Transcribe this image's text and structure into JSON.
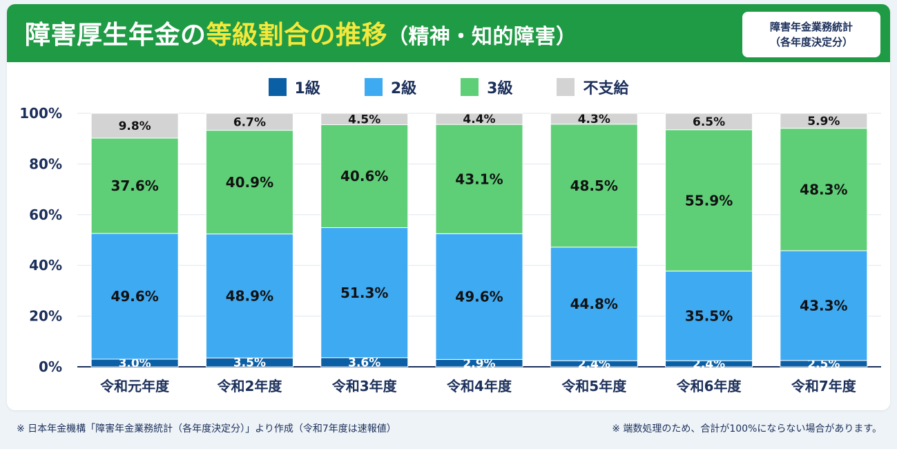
{
  "header": {
    "title_part1": "障害厚生年金の",
    "title_highlight": "等級割合の推移",
    "title_part2": "（精神・知的障害）",
    "source_line1": "障害年金業務統計",
    "source_line2": "（各年度決定分）"
  },
  "colors": {
    "header_bg": "#1f9a45",
    "highlight": "#f4e83c",
    "grade1": "#0b5fa5",
    "grade2": "#3eaaf2",
    "grade3": "#5ecf77",
    "unpaid": "#d3d3d3",
    "axis_text": "#1b2f5a"
  },
  "legend": [
    {
      "label": "1級",
      "color": "#0b5fa5"
    },
    {
      "label": "2級",
      "color": "#3eaaf2"
    },
    {
      "label": "3級",
      "color": "#5ecf77"
    },
    {
      "label": "不支給",
      "color": "#d3d3d3"
    }
  ],
  "chart_data": {
    "type": "bar",
    "stacked": true,
    "categories": [
      "令和元年度",
      "令和2年度",
      "令和3年度",
      "令和4年度",
      "令和5年度",
      "令和6年度",
      "令和7年度"
    ],
    "series": [
      {
        "name": "1級",
        "values": [
          3.0,
          3.5,
          3.6,
          2.9,
          2.4,
          2.4,
          2.5
        ],
        "labels": [
          "3.0%",
          "3.5%",
          "3.6%",
          "2.9%",
          "2.4%",
          "2.4%",
          "2.5%"
        ]
      },
      {
        "name": "2級",
        "values": [
          49.6,
          48.9,
          51.3,
          49.6,
          44.8,
          35.5,
          43.3
        ],
        "labels": [
          "49.6%",
          "48.9%",
          "51.3%",
          "49.6%",
          "44.8%",
          "35.5%",
          "43.3%"
        ]
      },
      {
        "name": "3級",
        "values": [
          37.6,
          40.9,
          40.6,
          43.1,
          48.5,
          55.9,
          48.3
        ],
        "labels": [
          "37.6%",
          "40.9%",
          "40.6%",
          "43.1%",
          "48.5%",
          "55.9%",
          "48.3%"
        ]
      },
      {
        "name": "不支給",
        "values": [
          9.8,
          6.7,
          4.5,
          4.4,
          4.3,
          6.5,
          5.9
        ],
        "labels": [
          "9.8%",
          "6.7%",
          "4.5%",
          "4.4%",
          "4.3%",
          "6.5%",
          "5.9%"
        ]
      }
    ],
    "y_ticks": [
      "0%",
      "20%",
      "40%",
      "60%",
      "80%",
      "100%"
    ],
    "y_tick_values": [
      0,
      20,
      40,
      60,
      80,
      100
    ],
    "ylim": [
      0,
      100
    ],
    "grid": true,
    "legend_position": "top"
  },
  "footer": {
    "left": "※ 日本年金機構「障害年金業務統計（各年度決定分）」より作成（令和7年度は速報値）",
    "right": "※ 端数処理のため、合計が100%にならない場合があります。"
  }
}
